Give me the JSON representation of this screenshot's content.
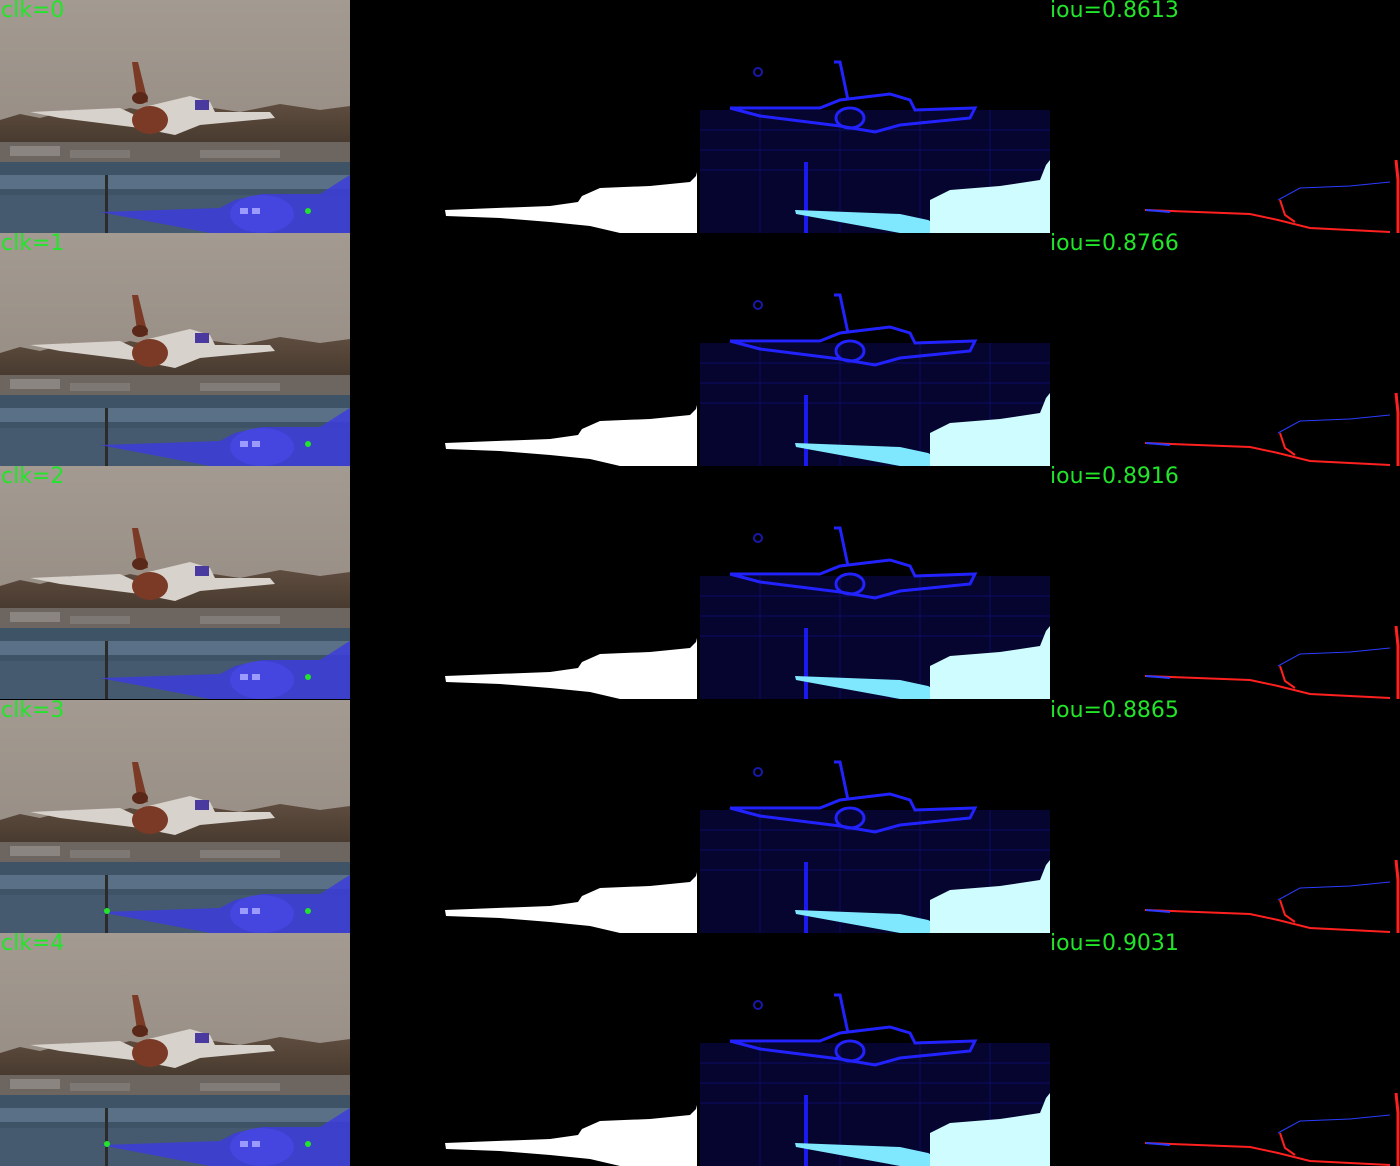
{
  "rows": [
    {
      "clk_label": "clk=0",
      "iou_label": "iou=0.8613",
      "clicks": 1
    },
    {
      "clk_label": "clk=1",
      "iou_label": "iou=0.8766",
      "clicks": 1
    },
    {
      "clk_label": "clk=2",
      "iou_label": "iou=0.8916",
      "clicks": 1
    },
    {
      "clk_label": "clk=3",
      "iou_label": "iou=0.8865",
      "clicks": 2
    },
    {
      "clk_label": "clk=4",
      "iou_label": "iou=0.9031",
      "clicks": 2
    }
  ],
  "colors": {
    "label_green": "#22e52a",
    "click_point": "#22e52a",
    "mask_overlay": "#3c3cdc",
    "mask_white": "#ffffff",
    "heatmap_blue": "#1a1aff",
    "heatmap_cyan": "#cffcff",
    "error_red": "#ff2020",
    "error_blue": "#2a3cff"
  }
}
